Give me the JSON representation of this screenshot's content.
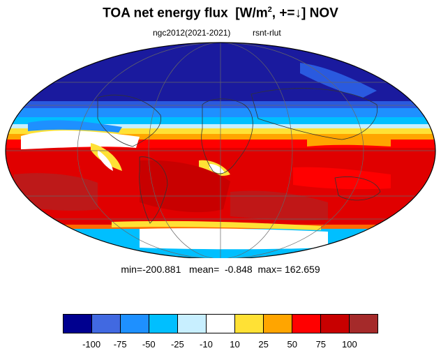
{
  "title": {
    "prefix": "TOA net energy flux  [W/m",
    "superscript": "2",
    "suffix": ", +=↓] NOV"
  },
  "subtitle": {
    "case": "ngc2012(2021-2021)",
    "variable": "rsnt-rlut"
  },
  "stats": "min=-200.881   mean=  -0.848  max= 162.659",
  "colorbar": {
    "colors": [
      "#00008f",
      "#4169e1",
      "#1e90ff",
      "#00bfff",
      "#c8efff",
      "#ffffff",
      "#ffe135",
      "#ffa500",
      "#ff0000",
      "#c80000",
      "#a52a2a"
    ],
    "labels": [
      "-100",
      "-75",
      "-50",
      "-25",
      "-10",
      "10",
      "25",
      "50",
      "75",
      "100"
    ]
  }
}
